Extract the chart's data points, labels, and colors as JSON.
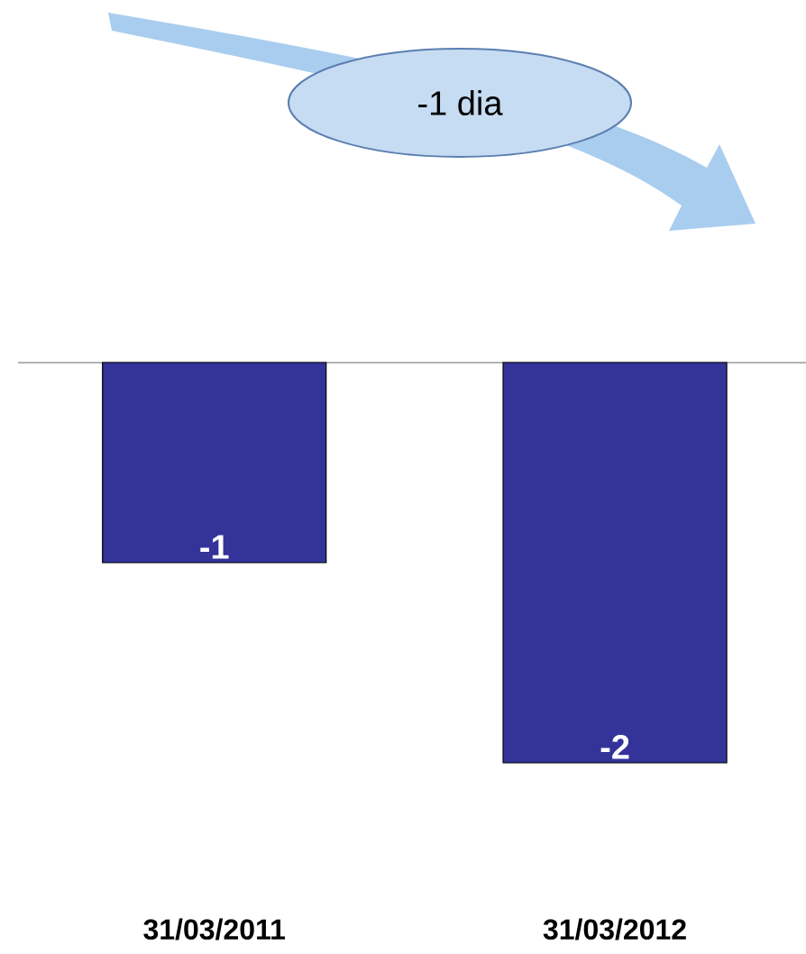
{
  "chart_data": {
    "type": "bar",
    "categories": [
      "31/03/2011",
      "31/03/2012"
    ],
    "values": [
      -1,
      -2
    ],
    "color": "#333399",
    "data_labels": true,
    "annotations": [
      "-1 dia"
    ]
  }
}
